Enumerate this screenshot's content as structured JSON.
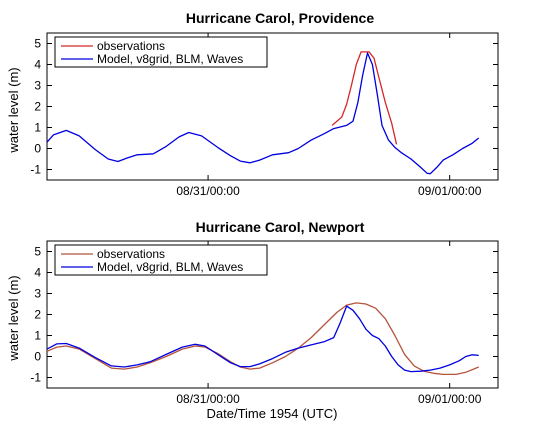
{
  "xlabel": "Date/Time 1954 (UTC)",
  "chart_data": [
    {
      "type": "line",
      "title": "Hurricane Carol, Providence",
      "ylabel": "water level (m)",
      "xlim": [
        0,
        1.4
      ],
      "ylim": [
        -1.5,
        5.5
      ],
      "yticks": [
        -1,
        0,
        1,
        2,
        3,
        4,
        5
      ],
      "xticks": [
        {
          "x": 0.5,
          "label": "08/31/00:00"
        },
        {
          "x": 1.25,
          "label": "09/01/00:00"
        }
      ],
      "legend": "top-left",
      "series": [
        {
          "name": "observations",
          "color": "#d62728",
          "points": [
            [
              0.885,
              1.1
            ],
            [
              0.9,
              1.3
            ],
            [
              0.915,
              1.5
            ],
            [
              0.93,
              2.1
            ],
            [
              0.945,
              3.0
            ],
            [
              0.96,
              4.0
            ],
            [
              0.975,
              4.6
            ],
            [
              0.99,
              4.6
            ],
            [
              1.0,
              4.6
            ],
            [
              1.015,
              4.3
            ],
            [
              1.03,
              3.4
            ],
            [
              1.05,
              2.2
            ],
            [
              1.07,
              1.2
            ],
            [
              1.085,
              0.2
            ]
          ]
        },
        {
          "name": "Model, v8grid, BLM, Waves",
          "color": "#0000e0",
          "points": [
            [
              0.0,
              0.3
            ],
            [
              0.02,
              0.65
            ],
            [
              0.06,
              0.86
            ],
            [
              0.1,
              0.6
            ],
            [
              0.15,
              -0.05
            ],
            [
              0.19,
              -0.5
            ],
            [
              0.22,
              -0.62
            ],
            [
              0.25,
              -0.45
            ],
            [
              0.28,
              -0.3
            ],
            [
              0.33,
              -0.25
            ],
            [
              0.37,
              0.1
            ],
            [
              0.41,
              0.55
            ],
            [
              0.44,
              0.76
            ],
            [
              0.48,
              0.6
            ],
            [
              0.53,
              0.05
            ],
            [
              0.57,
              -0.35
            ],
            [
              0.6,
              -0.6
            ],
            [
              0.63,
              -0.68
            ],
            [
              0.66,
              -0.55
            ],
            [
              0.7,
              -0.3
            ],
            [
              0.75,
              -0.2
            ],
            [
              0.78,
              0.0
            ],
            [
              0.82,
              0.4
            ],
            [
              0.86,
              0.7
            ],
            [
              0.89,
              0.95
            ],
            [
              0.93,
              1.1
            ],
            [
              0.95,
              1.3
            ],
            [
              0.965,
              2.2
            ],
            [
              0.98,
              3.5
            ],
            [
              0.995,
              4.55
            ],
            [
              1.01,
              4.0
            ],
            [
              1.025,
              2.6
            ],
            [
              1.04,
              1.1
            ],
            [
              1.06,
              0.4
            ],
            [
              1.08,
              0.05
            ],
            [
              1.1,
              -0.2
            ],
            [
              1.13,
              -0.5
            ],
            [
              1.16,
              -0.9
            ],
            [
              1.18,
              -1.18
            ],
            [
              1.19,
              -1.2
            ],
            [
              1.21,
              -0.9
            ],
            [
              1.23,
              -0.55
            ],
            [
              1.26,
              -0.3
            ],
            [
              1.29,
              0.0
            ],
            [
              1.32,
              0.25
            ],
            [
              1.34,
              0.5
            ]
          ]
        }
      ]
    },
    {
      "type": "line",
      "title": "Hurricane Carol, Newport",
      "ylabel": "water level (m)",
      "xlim": [
        0,
        1.4
      ],
      "ylim": [
        -1.5,
        5.5
      ],
      "yticks": [
        -1,
        0,
        1,
        2,
        3,
        4,
        5
      ],
      "xticks": [
        {
          "x": 0.5,
          "label": "08/31/00:00"
        },
        {
          "x": 1.25,
          "label": "09/01/00:00"
        }
      ],
      "legend": "top-left",
      "series": [
        {
          "name": "observations",
          "color": "#b5533b",
          "points": [
            [
              0.0,
              0.25
            ],
            [
              0.03,
              0.45
            ],
            [
              0.06,
              0.5
            ],
            [
              0.1,
              0.35
            ],
            [
              0.15,
              -0.1
            ],
            [
              0.2,
              -0.55
            ],
            [
              0.24,
              -0.6
            ],
            [
              0.28,
              -0.5
            ],
            [
              0.32,
              -0.3
            ],
            [
              0.37,
              0.0
            ],
            [
              0.42,
              0.35
            ],
            [
              0.46,
              0.5
            ],
            [
              0.49,
              0.45
            ],
            [
              0.53,
              0.15
            ],
            [
              0.57,
              -0.25
            ],
            [
              0.6,
              -0.5
            ],
            [
              0.63,
              -0.6
            ],
            [
              0.66,
              -0.55
            ],
            [
              0.7,
              -0.3
            ],
            [
              0.74,
              0.0
            ],
            [
              0.78,
              0.4
            ],
            [
              0.82,
              0.9
            ],
            [
              0.86,
              1.5
            ],
            [
              0.9,
              2.1
            ],
            [
              0.93,
              2.45
            ],
            [
              0.96,
              2.55
            ],
            [
              0.99,
              2.5
            ],
            [
              1.02,
              2.3
            ],
            [
              1.05,
              1.8
            ],
            [
              1.08,
              1.0
            ],
            [
              1.11,
              0.1
            ],
            [
              1.14,
              -0.45
            ],
            [
              1.17,
              -0.7
            ],
            [
              1.2,
              -0.8
            ],
            [
              1.23,
              -0.85
            ],
            [
              1.27,
              -0.85
            ],
            [
              1.3,
              -0.75
            ],
            [
              1.34,
              -0.5
            ]
          ]
        },
        {
          "name": "Model, v8grid, BLM, Waves",
          "color": "#0000e0",
          "points": [
            [
              0.0,
              0.35
            ],
            [
              0.03,
              0.6
            ],
            [
              0.06,
              0.62
            ],
            [
              0.1,
              0.4
            ],
            [
              0.15,
              -0.05
            ],
            [
              0.2,
              -0.45
            ],
            [
              0.24,
              -0.5
            ],
            [
              0.28,
              -0.4
            ],
            [
              0.32,
              -0.25
            ],
            [
              0.37,
              0.1
            ],
            [
              0.42,
              0.45
            ],
            [
              0.46,
              0.58
            ],
            [
              0.49,
              0.5
            ],
            [
              0.53,
              0.1
            ],
            [
              0.57,
              -0.3
            ],
            [
              0.6,
              -0.48
            ],
            [
              0.63,
              -0.48
            ],
            [
              0.66,
              -0.35
            ],
            [
              0.7,
              -0.1
            ],
            [
              0.74,
              0.2
            ],
            [
              0.78,
              0.4
            ],
            [
              0.82,
              0.55
            ],
            [
              0.86,
              0.7
            ],
            [
              0.89,
              0.9
            ],
            [
              0.91,
              1.6
            ],
            [
              0.93,
              2.4
            ],
            [
              0.95,
              2.2
            ],
            [
              0.97,
              1.8
            ],
            [
              0.99,
              1.3
            ],
            [
              1.01,
              1.0
            ],
            [
              1.03,
              0.85
            ],
            [
              1.05,
              0.5
            ],
            [
              1.07,
              0.0
            ],
            [
              1.09,
              -0.4
            ],
            [
              1.11,
              -0.65
            ],
            [
              1.13,
              -0.72
            ],
            [
              1.16,
              -0.7
            ],
            [
              1.19,
              -0.65
            ],
            [
              1.22,
              -0.55
            ],
            [
              1.25,
              -0.4
            ],
            [
              1.28,
              -0.2
            ],
            [
              1.3,
              0.0
            ],
            [
              1.32,
              0.08
            ],
            [
              1.34,
              0.05
            ]
          ]
        }
      ]
    }
  ]
}
